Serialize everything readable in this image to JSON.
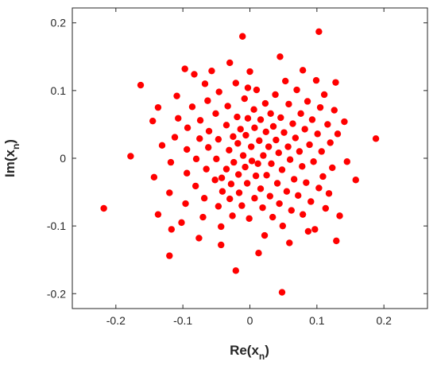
{
  "chart_data": {
    "type": "scatter",
    "xlabel": {
      "main": "Re(x",
      "sub": "n",
      "close": ")"
    },
    "ylabel": {
      "main": "Im(x",
      "sub": "n",
      "close": ")"
    },
    "xlim": [
      -0.265,
      0.265
    ],
    "ylim": [
      -0.222,
      0.222
    ],
    "xticks": [
      -0.2,
      -0.1,
      0,
      0.1,
      0.2
    ],
    "yticks": [
      -0.2,
      -0.1,
      0,
      0.1,
      0.2
    ],
    "xtick_labels": [
      "-0.2",
      "-0.1",
      "0",
      "0.1",
      "0.2"
    ],
    "ytick_labels": [
      "-0.2",
      "-0.1",
      "0",
      "0.1",
      "0.2"
    ],
    "grid": false,
    "marker_color": "#ff0000",
    "points": [
      [
        -0.218,
        -0.074
      ],
      [
        -0.178,
        0.003
      ],
      [
        -0.163,
        0.108
      ],
      [
        -0.145,
        0.055
      ],
      [
        -0.143,
        -0.028
      ],
      [
        -0.137,
        -0.083
      ],
      [
        -0.131,
        0.019
      ],
      [
        -0.12,
        -0.144
      ],
      [
        -0.12,
        -0.051
      ],
      [
        -0.118,
        -0.006
      ],
      [
        -0.112,
        0.031
      ],
      [
        -0.109,
        0.092
      ],
      [
        -0.107,
        0.059
      ],
      [
        -0.102,
        -0.095
      ],
      [
        -0.097,
        0.132
      ],
      [
        -0.096,
        -0.067
      ],
      [
        -0.094,
        -0.022
      ],
      [
        -0.094,
        0.013
      ],
      [
        -0.093,
        0.045
      ],
      [
        -0.086,
        0.076
      ],
      [
        -0.081,
        -0.041
      ],
      [
        -0.08,
        -0.001
      ],
      [
        -0.076,
        -0.118
      ],
      [
        -0.075,
        0.029
      ],
      [
        -0.074,
        0.056
      ],
      [
        -0.07,
        -0.087
      ],
      [
        -0.067,
        0.11
      ],
      [
        -0.068,
        -0.059
      ],
      [
        -0.065,
        -0.016
      ],
      [
        -0.063,
        0.085
      ],
      [
        -0.062,
        0.016
      ],
      [
        -0.061,
        0.04
      ],
      [
        -0.052,
        -0.032
      ],
      [
        -0.051,
        0.066
      ],
      [
        -0.05,
        -0.001
      ],
      [
        -0.047,
        -0.071
      ],
      [
        -0.047,
        0.028
      ],
      [
        -0.046,
        0.098
      ],
      [
        -0.043,
        -0.101
      ],
      [
        -0.041,
        -0.049
      ],
      [
        -0.035,
        0.049
      ],
      [
        -0.035,
        -0.016
      ],
      [
        -0.033,
        0.077
      ],
      [
        -0.031,
        0.012
      ],
      [
        -0.03,
        -0.06
      ],
      [
        -0.03,
        0.141
      ],
      [
        -0.028,
        -0.038
      ],
      [
        -0.026,
        -0.085
      ],
      [
        -0.025,
        0.032
      ],
      [
        -0.024,
        -0.006
      ],
      [
        -0.021,
        0.111
      ],
      [
        -0.019,
        0.061
      ],
      [
        -0.018,
        0.022
      ],
      [
        -0.017,
        -0.024
      ],
      [
        -0.016,
        -0.051
      ],
      [
        -0.014,
        0.043
      ],
      [
        -0.012,
        -0.07
      ],
      [
        -0.01,
        0.004
      ],
      [
        -0.008,
        0.088
      ],
      [
        -0.007,
        -0.013
      ],
      [
        -0.006,
        0.034
      ],
      [
        -0.004,
        -0.037
      ],
      [
        -0.003,
        0.059
      ],
      [
        -0.001,
        -0.089
      ],
      [
        0.002,
        0.017
      ],
      [
        0.003,
        -0.004
      ],
      [
        0.006,
        0.072
      ],
      [
        0.007,
        -0.059
      ],
      [
        0.007,
        0.045
      ],
      [
        0.009,
        -0.026
      ],
      [
        0.01,
        0.101
      ],
      [
        0.012,
        -0.008
      ],
      [
        0.014,
        0.026
      ],
      [
        0.016,
        -0.045
      ],
      [
        0.016,
        0.057
      ],
      [
        0.019,
        -0.073
      ],
      [
        0.02,
        0.004
      ],
      [
        0.022,
        -0.114
      ],
      [
        0.023,
        0.081
      ],
      [
        0.024,
        0.039
      ],
      [
        0.025,
        -0.025
      ],
      [
        0.028,
        0.017
      ],
      [
        0.03,
        -0.056
      ],
      [
        0.031,
        0.066
      ],
      [
        0.032,
        -0.008
      ],
      [
        0.034,
        -0.087
      ],
      [
        0.035,
        0.047
      ],
      [
        0.038,
        0.094
      ],
      [
        0.039,
        0.027
      ],
      [
        0.041,
        -0.037
      ],
      [
        0.043,
        0.008
      ],
      [
        0.044,
        -0.067
      ],
      [
        0.046,
        0.06
      ],
      [
        0.048,
        -0.017
      ],
      [
        0.049,
        -0.1
      ],
      [
        0.051,
        0.038
      ],
      [
        0.053,
        0.114
      ],
      [
        0.055,
        -0.049
      ],
      [
        0.057,
        0.017
      ],
      [
        0.058,
        0.08
      ],
      [
        0.06,
        -0.002
      ],
      [
        0.062,
        -0.077
      ],
      [
        0.064,
        0.051
      ],
      [
        0.066,
        -0.031
      ],
      [
        0.068,
        0.03
      ],
      [
        0.07,
        0.101
      ],
      [
        0.072,
        -0.055
      ],
      [
        0.074,
        0.01
      ],
      [
        0.076,
        0.066
      ],
      [
        0.078,
        -0.012
      ],
      [
        0.079,
        -0.083
      ],
      [
        0.082,
        0.043
      ],
      [
        0.084,
        -0.036
      ],
      [
        0.086,
        0.084
      ],
      [
        0.089,
        0.02
      ],
      [
        0.091,
        -0.064
      ],
      [
        0.093,
        0.057
      ],
      [
        0.095,
        -0.005
      ],
      [
        0.097,
        -0.105
      ],
      [
        0.099,
        0.115
      ],
      [
        0.101,
        0.036
      ],
      [
        0.103,
        -0.044
      ],
      [
        0.105,
        0.075
      ],
      [
        0.107,
        0.01
      ],
      [
        0.109,
        -0.027
      ],
      [
        0.111,
        0.094
      ],
      [
        0.113,
        -0.074
      ],
      [
        0.116,
        0.05
      ],
      [
        0.118,
        -0.052
      ],
      [
        0.12,
        0.023
      ],
      [
        0.123,
        -0.014
      ],
      [
        0.126,
        0.071
      ],
      [
        0.128,
        0.112
      ],
      [
        0.129,
        -0.122
      ],
      [
        0.131,
        0.036
      ],
      [
        0.134,
        -0.085
      ],
      [
        0.141,
        0.054
      ],
      [
        0.158,
        -0.032
      ],
      [
        0.188,
        0.029
      ],
      [
        -0.021,
        -0.166
      ],
      [
        0.048,
        -0.198
      ],
      [
        -0.011,
        0.18
      ],
      [
        0.045,
        0.15
      ],
      [
        0.103,
        0.187
      ],
      [
        -0.042,
        -0.029
      ],
      [
        -0.057,
        0.129
      ],
      [
        -0.083,
        0.124
      ],
      [
        0.0,
        0.128
      ],
      [
        -0.003,
        0.104
      ],
      [
        0.059,
        -0.125
      ],
      [
        0.013,
        -0.14
      ],
      [
        -0.043,
        -0.128
      ],
      [
        0.079,
        0.13
      ],
      [
        0.087,
        -0.108
      ],
      [
        -0.117,
        -0.105
      ],
      [
        0.145,
        -0.005
      ],
      [
        -0.137,
        0.075
      ]
    ]
  }
}
